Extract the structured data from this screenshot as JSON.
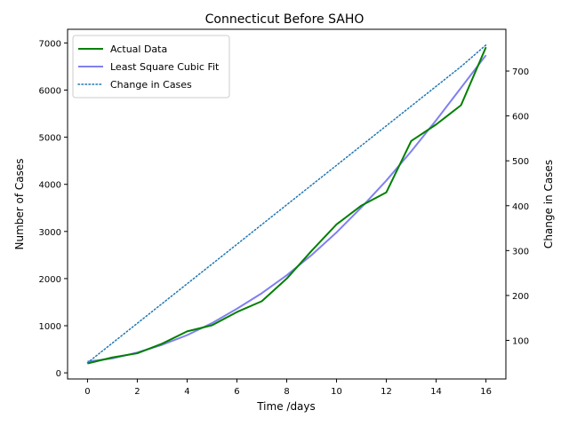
{
  "chart_data": {
    "type": "line",
    "title": "Connecticut Before SAHO",
    "xlabel": "Time /days",
    "ylabel": "Number of Cases",
    "y2label": "Change in Cases",
    "xlim": [
      -0.8,
      16.8
    ],
    "ylim": [
      -130,
      7290
    ],
    "y2lim": [
      14,
      793
    ],
    "xticks": [
      0,
      2,
      4,
      6,
      8,
      10,
      12,
      14,
      16
    ],
    "yticks": [
      0,
      1000,
      2000,
      3000,
      4000,
      5000,
      6000,
      7000
    ],
    "y2ticks": [
      100,
      200,
      300,
      400,
      500,
      600,
      700
    ],
    "grid": false,
    "legend_position": "top-left",
    "x": [
      0,
      1,
      2,
      3,
      4,
      5,
      6,
      7,
      8,
      9,
      10,
      11,
      12,
      13,
      14,
      15,
      16
    ],
    "series": [
      {
        "name": "Actual Data",
        "axis": "left",
        "color": "#008000",
        "style": "solid",
        "values": [
          200,
          327,
          415,
          620,
          880,
          1010,
          1290,
          1520,
          2000,
          2590,
          3150,
          3550,
          3830,
          4920,
          5270,
          5680,
          6910
        ]
      },
      {
        "name": "Least Square Cubic Fit",
        "axis": "left",
        "color": "#8080f0",
        "style": "solid",
        "values": [
          240,
          305,
          430,
          595,
          800,
          1055,
          1360,
          1690,
          2070,
          2500,
          2980,
          3510,
          4080,
          4700,
          5360,
          6050,
          6740
        ]
      },
      {
        "name": "Change in Cases",
        "axis": "right",
        "color": "#1f77b4",
        "style": "dotted",
        "values": [
          50,
          94,
          138,
          182,
          226,
          270,
          314,
          358,
          402,
          446,
          490,
          534,
          578,
          622,
          666,
          710,
          758
        ]
      }
    ]
  }
}
